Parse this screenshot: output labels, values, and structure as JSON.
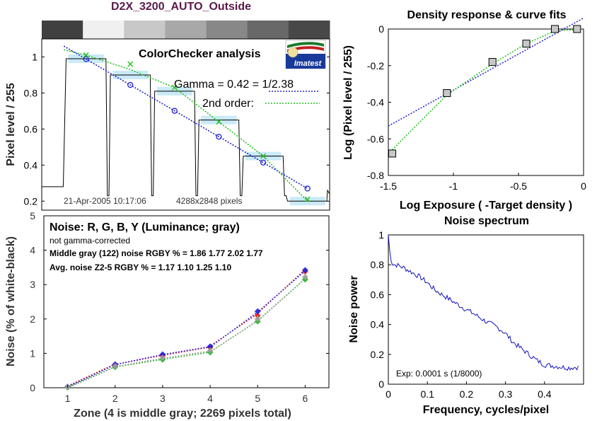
{
  "figure": {
    "title": "D2X_3200_AUTO_Outside",
    "title_color": "#5a1a4a"
  },
  "chart_data": [
    {
      "id": "colorchecker",
      "type": "line",
      "title": "ColorChecker analysis",
      "xlabel": "",
      "ylabel": "Pixel level / 255",
      "xlim": [
        0,
        6.5
      ],
      "ylim": [
        0.15,
        1.1
      ],
      "yticks": [
        "0.2",
        "0.4",
        "0.6",
        "0.8",
        "1"
      ],
      "grid": false,
      "annotations": {
        "gamma": "Gamma = 0.42 = 1/2.38",
        "second_order": "2nd order:",
        "footer_date": "21-Apr-2005 10:17:06",
        "footer_size": "4288x2848 pixels",
        "logo_text": "Imatest"
      },
      "zone_strip_grays": [
        "#404040",
        "#f0f0f0",
        "#c8c8c8",
        "#a8a8a8",
        "#888888",
        "#686868",
        "#484848"
      ],
      "zones": [
        {
          "zone": 1,
          "level": 0.99,
          "measured": 1.01
        },
        {
          "zone": 2,
          "level": 0.9,
          "measured": 0.96
        },
        {
          "zone": 3,
          "level": 0.81,
          "measured": 0.83
        },
        {
          "zone": 4,
          "level": 0.65,
          "measured": 0.64
        },
        {
          "zone": 5,
          "level": 0.45,
          "measured": 0.45
        },
        {
          "zone": 6,
          "level": 0.2,
          "measured": 0.21
        }
      ],
      "gamma_fit": {
        "x": [
          0.5,
          6
        ],
        "y": [
          1.06,
          0.27
        ]
      },
      "second_order_fit": {
        "x": [
          0.5,
          1,
          2,
          3,
          4,
          5,
          6
        ],
        "y": [
          1.04,
          1.01,
          0.93,
          0.83,
          0.64,
          0.45,
          0.2
        ]
      },
      "colors": {
        "gamma": "#2020d0",
        "second_order": "#20c020",
        "trace": "#000000",
        "highlight": "#9ed8f0"
      }
    },
    {
      "id": "density",
      "type": "line",
      "title": "Density response & curve fits",
      "xlabel": "Log Exposure ( -Target density )",
      "ylabel": "Log (Pixel level / 255)",
      "xlim": [
        -1.5,
        0
      ],
      "ylim": [
        -0.8,
        0
      ],
      "xticks": [
        "-1.5",
        "-1",
        "-0.5",
        "0"
      ],
      "yticks": [
        "0",
        "-0.2",
        "-0.4",
        "-0.6",
        "-0.8"
      ],
      "points": {
        "x": [
          -1.47,
          -1.05,
          -0.7,
          -0.44,
          -0.22,
          -0.05
        ],
        "y": [
          -0.68,
          -0.35,
          -0.18,
          -0.08,
          0.0,
          0.0
        ]
      },
      "fit_blue": {
        "x": [
          -1.5,
          0
        ],
        "y": [
          -0.53,
          0.06
        ]
      },
      "fit_green": {
        "x": [
          -1.47,
          -1.05,
          -0.7,
          -0.44,
          -0.22,
          0
        ],
        "y": [
          -0.66,
          -0.36,
          -0.19,
          -0.08,
          -0.01,
          0.0
        ]
      }
    },
    {
      "id": "noise",
      "type": "line",
      "title": "Noise: R, G, B, Y (Luminance; gray)",
      "xlabel": "Zone  (4 is middle gray;  2269 pixels total)",
      "ylabel": "Noise (% of white-black)",
      "xlim": [
        0.5,
        6.5
      ],
      "ylim": [
        0,
        5
      ],
      "xticks": [
        "1",
        "2",
        "3",
        "4",
        "5",
        "6"
      ],
      "yticks": [
        "0",
        "1",
        "2",
        "3",
        "4",
        "5"
      ],
      "annotations": {
        "subtitle": "not gamma-corrected",
        "middle_gray": "Middle gray (122) noise RGBY % = 1.86  1.77  2.02  1.77",
        "avg_noise": "Avg. noise Z2-5 RGBY % = 1.17  1.10  1.25  1.10"
      },
      "x": [
        1,
        2,
        3,
        4,
        5,
        6
      ],
      "series": [
        {
          "color": "#e02020",
          "values": [
            0.02,
            0.66,
            0.93,
            1.17,
            2.1,
            3.38
          ]
        },
        {
          "color": "#20b020",
          "values": [
            0.01,
            0.6,
            0.82,
            1.03,
            1.93,
            3.15
          ]
        },
        {
          "color": "#2020e0",
          "values": [
            0.03,
            0.68,
            0.97,
            1.2,
            2.22,
            3.42
          ]
        },
        {
          "color": "#a0a0a0",
          "values": [
            0.02,
            0.63,
            0.87,
            1.08,
            2.0,
            3.22
          ]
        }
      ]
    },
    {
      "id": "spectrum",
      "type": "line",
      "title": "Noise spectrum",
      "xlabel": "Frequency, cycles/pixel",
      "ylabel": "Noise power",
      "xlim": [
        0,
        0.5
      ],
      "ylim": [
        0,
        1
      ],
      "xticks": [
        "0",
        "0.1",
        "0.2",
        "0.3",
        "0.4"
      ],
      "yticks": [
        "0",
        "0.2",
        "0.4",
        "0.6",
        "0.8",
        "1"
      ],
      "annotation": "Exp:  0.0001 s  (1/8000)",
      "anchors": {
        "x": [
          0,
          0.005,
          0.01,
          0.02,
          0.04,
          0.06,
          0.08,
          0.1,
          0.12,
          0.15,
          0.18,
          0.2,
          0.22,
          0.25,
          0.28,
          0.3,
          0.32,
          0.35,
          0.38,
          0.4,
          0.43,
          0.46,
          0.49
        ],
        "y": [
          1.0,
          0.85,
          0.8,
          0.8,
          0.78,
          0.75,
          0.72,
          0.68,
          0.63,
          0.58,
          0.53,
          0.5,
          0.47,
          0.42,
          0.38,
          0.34,
          0.28,
          0.22,
          0.16,
          0.13,
          0.12,
          0.11,
          0.115
        ]
      },
      "line_color": "#1010c0"
    }
  ]
}
